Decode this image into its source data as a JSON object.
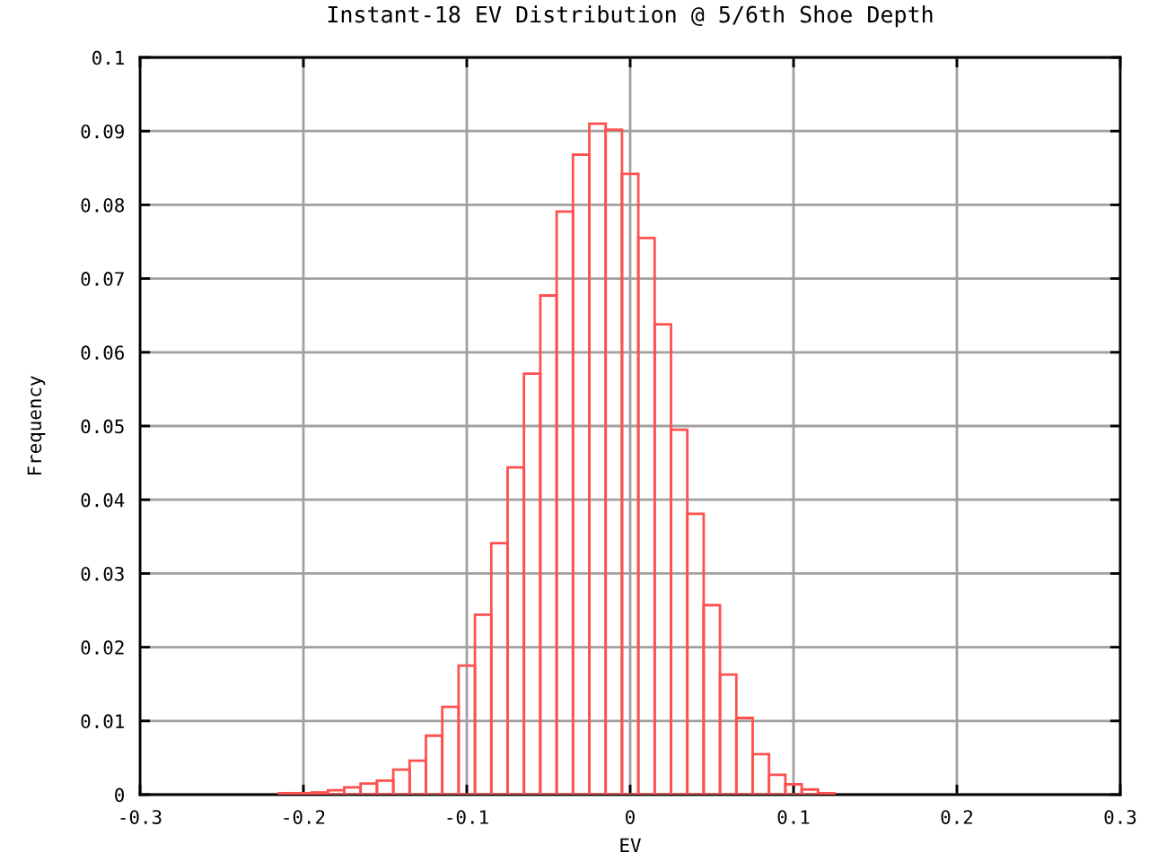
{
  "chart_data": {
    "type": "histogram",
    "title": "Instant-18 EV Distribution @ 5/6th Shoe Depth",
    "xlabel": "EV",
    "ylabel": "Frequency",
    "bins": [
      -0.215,
      -0.205,
      -0.195,
      -0.185,
      -0.175,
      -0.165,
      -0.155,
      -0.145,
      -0.135,
      -0.125,
      -0.115,
      -0.105,
      -0.095,
      -0.085,
      -0.075,
      -0.065,
      -0.055,
      -0.045,
      -0.035,
      -0.025,
      -0.015,
      -0.005,
      0.005,
      0.015,
      0.025,
      0.035,
      0.045,
      0.055,
      0.065,
      0.075,
      0.085,
      0.095,
      0.105,
      0.115,
      0.125
    ],
    "values": [
      0.0002,
      0.0002,
      0.0003,
      0.0006,
      0.001,
      0.0015,
      0.0019,
      0.0034,
      0.0046,
      0.008,
      0.0119,
      0.0175,
      0.0244,
      0.0341,
      0.0444,
      0.0571,
      0.0677,
      0.0791,
      0.0868,
      0.091,
      0.0902,
      0.0842,
      0.0755,
      0.0638,
      0.0495,
      0.0381,
      0.0257,
      0.0163,
      0.0104,
      0.0055,
      0.0027,
      0.0014,
      0.0007,
      0.0002
    ],
    "color": "#ff5050",
    "xlim": [
      -0.3,
      0.3
    ],
    "xticks": [
      -0.3,
      -0.2,
      -0.1,
      0,
      0.1,
      0.2,
      0.3
    ],
    "ylim": [
      0,
      0.1
    ],
    "yticks": [
      0,
      0.01,
      0.02,
      0.03,
      0.04,
      0.05,
      0.06,
      0.07,
      0.08,
      0.09,
      0.1
    ],
    "grid": true
  }
}
